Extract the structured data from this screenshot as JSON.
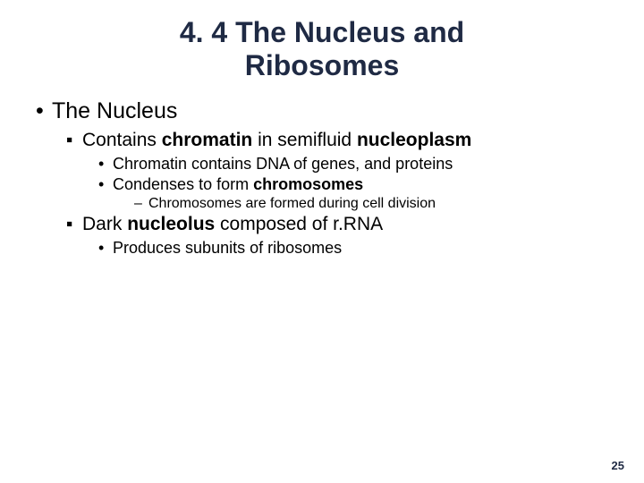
{
  "colors": {
    "title": "#1f2a44",
    "body": "#000000",
    "background": "#ffffff"
  },
  "fonts": {
    "title_size_pt": 32,
    "lvl1_size_pt": 25,
    "lvl2_size_pt": 21,
    "lvl3_size_pt": 18,
    "lvl4_size_pt": 16,
    "pagenum_size_pt": 13
  },
  "title_line1": "4. 4 The Nucleus and",
  "title_line2": "Ribosomes",
  "bullets": {
    "lvl1_1": "The Nucleus",
    "lvl2_1_pre": "Contains ",
    "lvl2_1_b1": "chromatin",
    "lvl2_1_mid": " in semifluid ",
    "lvl2_1_b2": "nucleoplasm",
    "lvl3_1": "Chromatin contains DNA of genes, and proteins",
    "lvl3_2_pre": "Condenses to form ",
    "lvl3_2_b1": "chromosomes",
    "lvl4_1": "Chromosomes are formed during cell division",
    "lvl2_2_pre": "Dark ",
    "lvl2_2_b1": "nucleolus",
    "lvl2_2_post": " composed of r.RNA",
    "lvl3_3": "Produces subunits of ribosomes"
  },
  "glyphs": {
    "disc": "•",
    "square": "▪",
    "dash": "–"
  },
  "page_number": "25"
}
